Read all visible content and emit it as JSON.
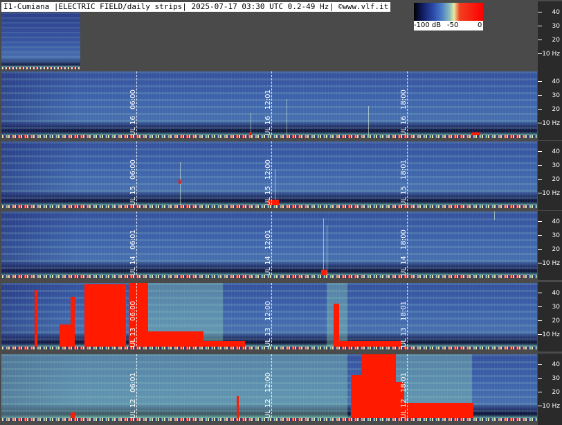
{
  "title": "I1-Cumiana |ELECTRIC FIELD/daily strips| 2025-07-17 03:30 UTC 0.2-49 Hz| ©www.vlf.it",
  "colorbar": {
    "ticks": [
      "-100 dB",
      "-50",
      "0"
    ],
    "colors": [
      "#000000",
      "#2a4aa8",
      "#8fc0b8",
      "#e8e8a0",
      "#ff0000"
    ]
  },
  "freq_axis_labels": [
    "40",
    "30",
    "20",
    "10 Hz"
  ],
  "strips": [
    {
      "date": "JUL 16",
      "times": [
        "06:00",
        "12:01",
        "18:00"
      ]
    },
    {
      "date": "JUL 15",
      "times": [
        "06:00",
        "12:00",
        "18:01"
      ]
    },
    {
      "date": "JUL 14",
      "times": [
        "06:01",
        "12:01",
        "18:00"
      ]
    },
    {
      "date": "JUL 13",
      "times": [
        "06:00",
        "12:00",
        "18:01"
      ]
    },
    {
      "date": "JUL 12",
      "times": [
        "06:01",
        "12:00",
        "18:01"
      ]
    }
  ]
}
